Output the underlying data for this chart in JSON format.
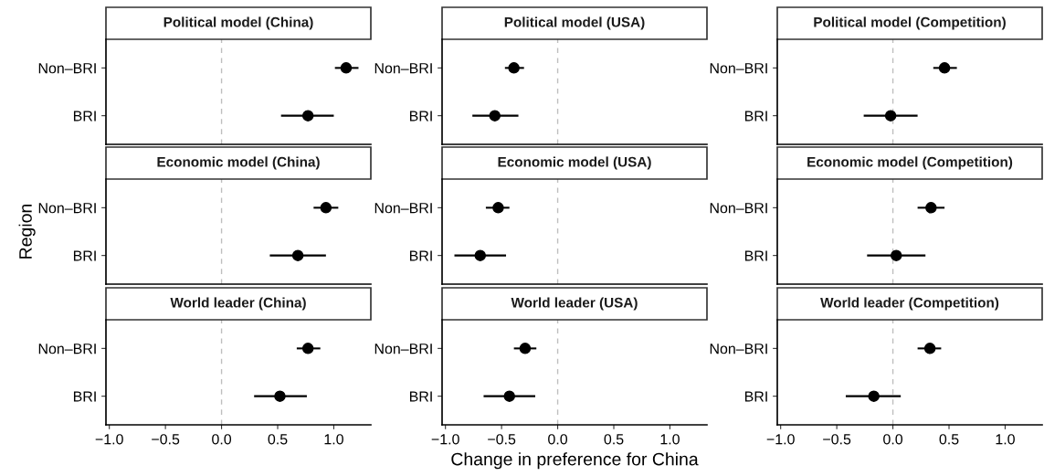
{
  "chart_data": [
    {
      "type": "scatter",
      "orientation": "horizontal",
      "title": "Political model (China)",
      "categories": [
        "Non–BRI",
        "BRI"
      ],
      "values": [
        1.11,
        0.77
      ],
      "errors": [
        [
          1.01,
          1.22
        ],
        [
          0.53,
          1.0
        ]
      ],
      "color": "#000000",
      "marker": "circle",
      "xlim": [
        -1.03,
        1.33
      ],
      "ref_lines": [
        {
          "axis": "x",
          "value": 0,
          "color": "#bebebe",
          "line_style": "dashed"
        }
      ],
      "tick_labels": "y",
      "grid": false,
      "legend": false
    },
    {
      "type": "scatter",
      "orientation": "horizontal",
      "title": "Political model (USA)",
      "categories": [
        "Non–BRI",
        "BRI"
      ],
      "values": [
        -0.39,
        -0.56
      ],
      "errors": [
        [
          -0.47,
          -0.3
        ],
        [
          -0.76,
          -0.35
        ]
      ],
      "color": "#000000",
      "marker": "circle",
      "xlim": [
        -1.03,
        1.33
      ],
      "ref_lines": [
        {
          "axis": "x",
          "value": 0,
          "color": "#bebebe",
          "line_style": "dashed"
        }
      ],
      "tick_labels": "y",
      "grid": false,
      "legend": false
    },
    {
      "type": "scatter",
      "orientation": "horizontal",
      "title": "Political model (Competition)",
      "categories": [
        "Non–BRI",
        "BRI"
      ],
      "values": [
        0.46,
        -0.02
      ],
      "errors": [
        [
          0.36,
          0.57
        ],
        [
          -0.26,
          0.22
        ]
      ],
      "color": "#000000",
      "marker": "circle",
      "xlim": [
        -1.03,
        1.33
      ],
      "ref_lines": [
        {
          "axis": "x",
          "value": 0,
          "color": "#bebebe",
          "line_style": "dashed"
        }
      ],
      "tick_labels": "y",
      "grid": false,
      "legend": false
    },
    {
      "type": "scatter",
      "orientation": "horizontal",
      "title": "Economic model (China)",
      "ylabel": "Region",
      "categories": [
        "Non–BRI",
        "BRI"
      ],
      "values": [
        0.93,
        0.68
      ],
      "errors": [
        [
          0.82,
          1.04
        ],
        [
          0.43,
          0.93
        ]
      ],
      "color": "#000000",
      "marker": "circle",
      "xlim": [
        -1.03,
        1.33
      ],
      "ref_lines": [
        {
          "axis": "x",
          "value": 0,
          "color": "#bebebe",
          "line_style": "dashed"
        }
      ],
      "tick_labels": "y",
      "grid": false,
      "legend": false
    },
    {
      "type": "scatter",
      "orientation": "horizontal",
      "title": "Economic model (USA)",
      "categories": [
        "Non–BRI",
        "BRI"
      ],
      "values": [
        -0.53,
        -0.69
      ],
      "errors": [
        [
          -0.64,
          -0.43
        ],
        [
          -0.92,
          -0.46
        ]
      ],
      "color": "#000000",
      "marker": "circle",
      "xlim": [
        -1.03,
        1.33
      ],
      "ref_lines": [
        {
          "axis": "x",
          "value": 0,
          "color": "#bebebe",
          "line_style": "dashed"
        }
      ],
      "tick_labels": "y",
      "grid": false,
      "legend": false
    },
    {
      "type": "scatter",
      "orientation": "horizontal",
      "title": "Economic model (Competition)",
      "categories": [
        "Non–BRI",
        "BRI"
      ],
      "values": [
        0.34,
        0.03
      ],
      "errors": [
        [
          0.22,
          0.46
        ],
        [
          -0.23,
          0.29
        ]
      ],
      "color": "#000000",
      "marker": "circle",
      "xlim": [
        -1.03,
        1.33
      ],
      "ref_lines": [
        {
          "axis": "x",
          "value": 0,
          "color": "#bebebe",
          "line_style": "dashed"
        }
      ],
      "tick_labels": "y",
      "grid": false,
      "legend": false
    },
    {
      "type": "scatter",
      "orientation": "horizontal",
      "title": "World leader (China)",
      "categories": [
        "Non–BRI",
        "BRI"
      ],
      "values": [
        0.77,
        0.52
      ],
      "errors": [
        [
          0.67,
          0.88
        ],
        [
          0.29,
          0.76
        ]
      ],
      "color": "#000000",
      "marker": "circle",
      "xlim": [
        -1.03,
        1.33
      ],
      "xticks": [
        {
          "value": -1,
          "label": "−1.0"
        },
        {
          "value": -0.5,
          "label": "−0.5"
        },
        {
          "value": 0,
          "label": "0.0"
        },
        {
          "value": 0.5,
          "label": "0.5"
        },
        {
          "value": 1,
          "label": "1.0"
        }
      ],
      "ref_lines": [
        {
          "axis": "x",
          "value": 0,
          "color": "#bebebe",
          "line_style": "dashed"
        }
      ],
      "grid": false,
      "legend": false
    },
    {
      "type": "scatter",
      "orientation": "horizontal",
      "title": "World leader (USA)",
      "xlabel": "Change in preference for China",
      "categories": [
        "Non–BRI",
        "BRI"
      ],
      "values": [
        -0.29,
        -0.43
      ],
      "errors": [
        [
          -0.39,
          -0.19
        ],
        [
          -0.66,
          -0.2
        ]
      ],
      "color": "#000000",
      "marker": "circle",
      "xlim": [
        -1.03,
        1.33
      ],
      "xticks": [
        {
          "value": -1,
          "label": "−1.0"
        },
        {
          "value": -0.5,
          "label": "−0.5"
        },
        {
          "value": 0,
          "label": "0.0"
        },
        {
          "value": 0.5,
          "label": "0.5"
        },
        {
          "value": 1,
          "label": "1.0"
        }
      ],
      "ref_lines": [
        {
          "axis": "x",
          "value": 0,
          "color": "#bebebe",
          "line_style": "dashed"
        }
      ],
      "grid": false,
      "legend": false
    },
    {
      "type": "scatter",
      "orientation": "horizontal",
      "title": "World leader (Competition)",
      "categories": [
        "Non–BRI",
        "BRI"
      ],
      "values": [
        0.33,
        -0.17
      ],
      "errors": [
        [
          0.22,
          0.43
        ],
        [
          -0.42,
          0.07
        ]
      ],
      "color": "#000000",
      "marker": "circle",
      "xlim": [
        -1.03,
        1.33
      ],
      "xticks": [
        {
          "value": -1,
          "label": "−1.0"
        },
        {
          "value": -0.5,
          "label": "−0.5"
        },
        {
          "value": 0,
          "label": "0.0"
        },
        {
          "value": 0.5,
          "label": "0.5"
        },
        {
          "value": 1,
          "label": "1.0"
        }
      ],
      "ref_lines": [
        {
          "axis": "x",
          "value": 0,
          "color": "#bebebe",
          "line_style": "dashed"
        }
      ],
      "grid": false,
      "legend": false
    }
  ]
}
